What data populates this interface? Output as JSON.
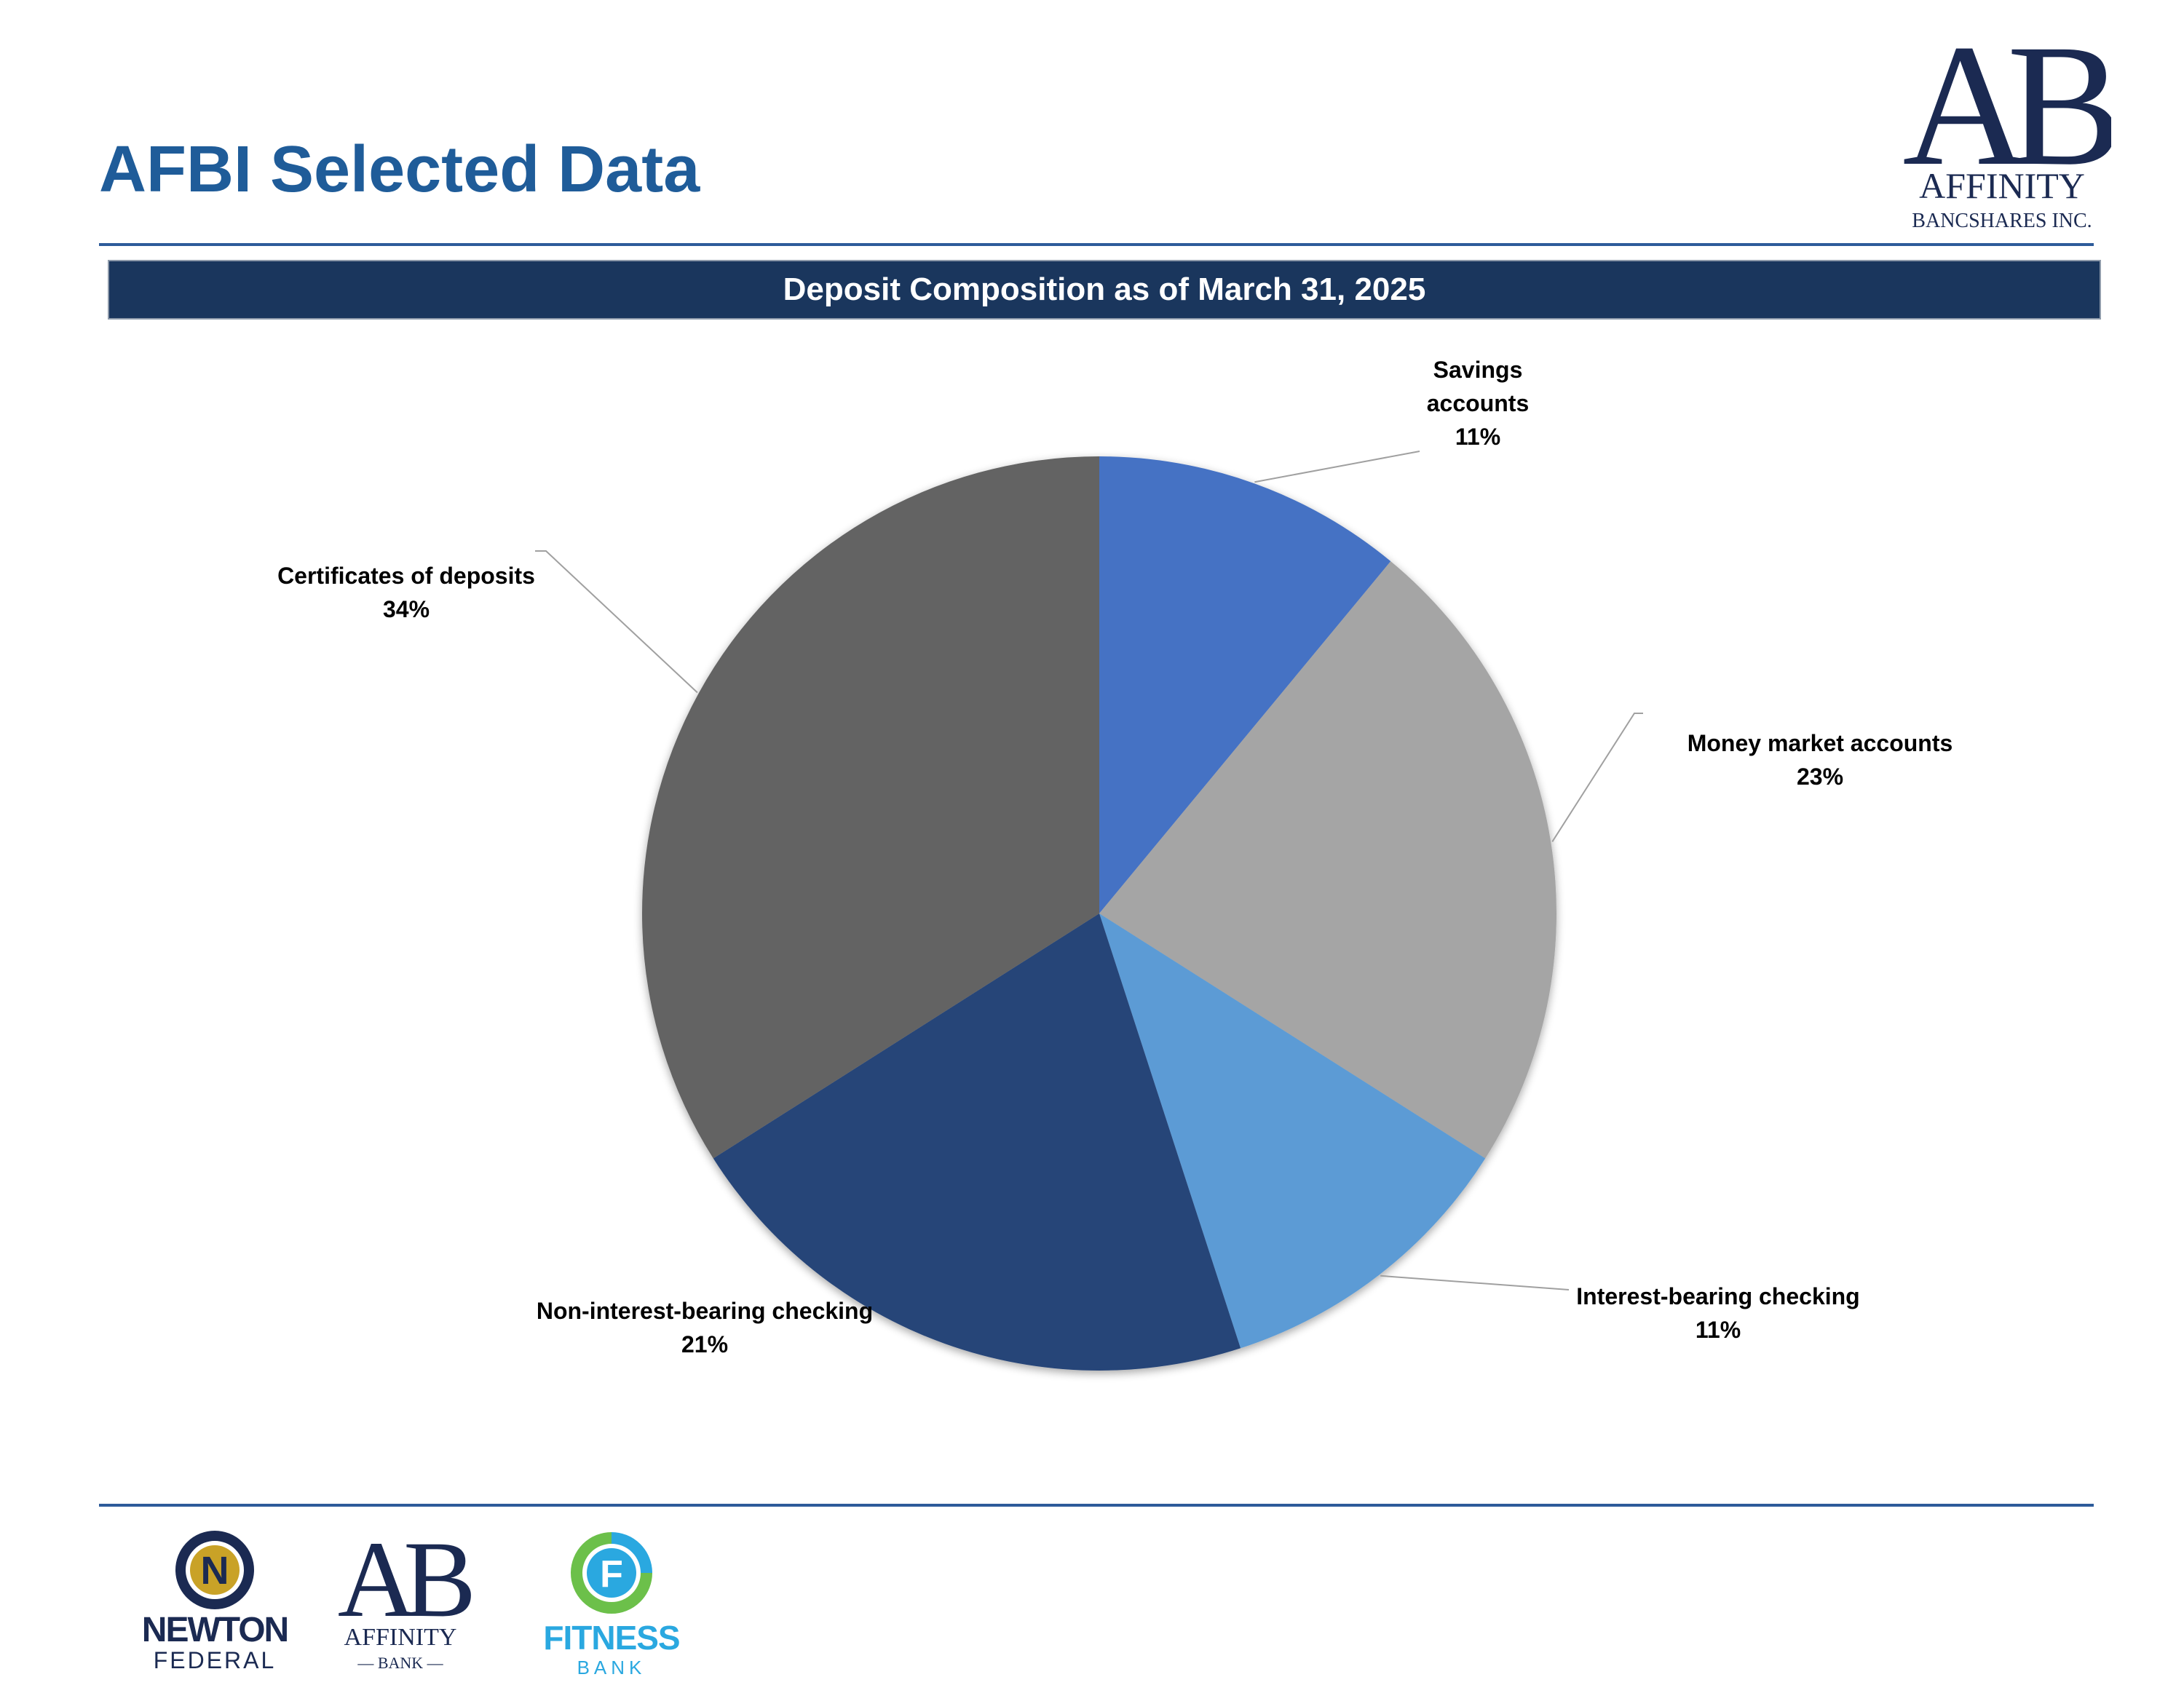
{
  "page": {
    "title": "AFBI Selected Data",
    "banner": "Deposit Composition as of March 31, 2025"
  },
  "chart_data": {
    "type": "pie",
    "title": "Deposit Composition as of March 31, 2025",
    "start_angle_deg": 0,
    "direction": "clockwise",
    "legend": "none",
    "slices": [
      {
        "label": "Savings accounts",
        "display_label": [
          "Savings",
          "accounts"
        ],
        "value": 11,
        "pct_label": "11%",
        "color": "#4472c4"
      },
      {
        "label": "Money market accounts",
        "display_label": [
          "Money market accounts"
        ],
        "value": 23,
        "pct_label": "23%",
        "color": "#a5a5a5"
      },
      {
        "label": "Interest-bearing checking",
        "display_label": [
          "Interest-bearing checking"
        ],
        "value": 11,
        "pct_label": "11%",
        "color": "#5b9bd5"
      },
      {
        "label": "Non-interest-bearing checking",
        "display_label": [
          "Non-interest-bearing checking"
        ],
        "value": 21,
        "pct_label": "21%",
        "color": "#264478"
      },
      {
        "label": "Certificates of deposits",
        "display_label": [
          "Certificates of deposits"
        ],
        "value": 34,
        "pct_label": "34%",
        "color": "#636363"
      }
    ]
  },
  "logos": {
    "header": {
      "monogram": "AB",
      "name": "AFFINITY",
      "sub": "BANCSHARES INC."
    },
    "newton": {
      "letter": "N",
      "name": "NEWTON",
      "sub": "FEDERAL"
    },
    "affinity_bank": {
      "monogram": "AB",
      "name": "AFFINITY",
      "sub": "— BANK —"
    },
    "fitness": {
      "letter": "F",
      "name": "FITNESS",
      "sub": "BANK"
    }
  },
  "colors": {
    "title": "#1f5c99",
    "banner_bg": "#1a365d",
    "rule": "#2d5b9a",
    "logo_navy": "#1b2a52",
    "newton_gold": "#c9a227",
    "fitness_blue": "#2aa8e0",
    "fitness_green": "#6cc04a"
  }
}
